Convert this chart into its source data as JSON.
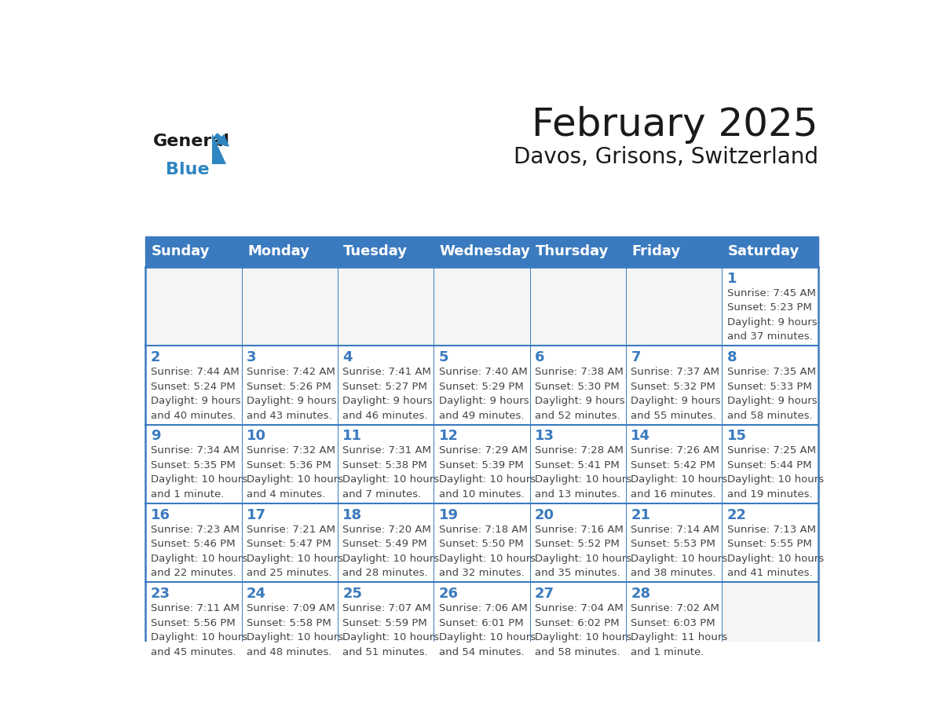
{
  "title": "February 2025",
  "subtitle": "Davos, Grisons, Switzerland",
  "header_color": "#3a7abf",
  "header_text_color": "#ffffff",
  "cell_bg_color": "#ffffff",
  "cell_border_color": "#3a7abf",
  "day_number_color": "#3a7abf",
  "text_color": "#444444",
  "days_of_week": [
    "Sunday",
    "Monday",
    "Tuesday",
    "Wednesday",
    "Thursday",
    "Friday",
    "Saturday"
  ],
  "weeks": [
    [
      {
        "day": null,
        "info": null
      },
      {
        "day": null,
        "info": null
      },
      {
        "day": null,
        "info": null
      },
      {
        "day": null,
        "info": null
      },
      {
        "day": null,
        "info": null
      },
      {
        "day": null,
        "info": null
      },
      {
        "day": 1,
        "info": "Sunrise: 7:45 AM\nSunset: 5:23 PM\nDaylight: 9 hours\nand 37 minutes."
      }
    ],
    [
      {
        "day": 2,
        "info": "Sunrise: 7:44 AM\nSunset: 5:24 PM\nDaylight: 9 hours\nand 40 minutes."
      },
      {
        "day": 3,
        "info": "Sunrise: 7:42 AM\nSunset: 5:26 PM\nDaylight: 9 hours\nand 43 minutes."
      },
      {
        "day": 4,
        "info": "Sunrise: 7:41 AM\nSunset: 5:27 PM\nDaylight: 9 hours\nand 46 minutes."
      },
      {
        "day": 5,
        "info": "Sunrise: 7:40 AM\nSunset: 5:29 PM\nDaylight: 9 hours\nand 49 minutes."
      },
      {
        "day": 6,
        "info": "Sunrise: 7:38 AM\nSunset: 5:30 PM\nDaylight: 9 hours\nand 52 minutes."
      },
      {
        "day": 7,
        "info": "Sunrise: 7:37 AM\nSunset: 5:32 PM\nDaylight: 9 hours\nand 55 minutes."
      },
      {
        "day": 8,
        "info": "Sunrise: 7:35 AM\nSunset: 5:33 PM\nDaylight: 9 hours\nand 58 minutes."
      }
    ],
    [
      {
        "day": 9,
        "info": "Sunrise: 7:34 AM\nSunset: 5:35 PM\nDaylight: 10 hours\nand 1 minute."
      },
      {
        "day": 10,
        "info": "Sunrise: 7:32 AM\nSunset: 5:36 PM\nDaylight: 10 hours\nand 4 minutes."
      },
      {
        "day": 11,
        "info": "Sunrise: 7:31 AM\nSunset: 5:38 PM\nDaylight: 10 hours\nand 7 minutes."
      },
      {
        "day": 12,
        "info": "Sunrise: 7:29 AM\nSunset: 5:39 PM\nDaylight: 10 hours\nand 10 minutes."
      },
      {
        "day": 13,
        "info": "Sunrise: 7:28 AM\nSunset: 5:41 PM\nDaylight: 10 hours\nand 13 minutes."
      },
      {
        "day": 14,
        "info": "Sunrise: 7:26 AM\nSunset: 5:42 PM\nDaylight: 10 hours\nand 16 minutes."
      },
      {
        "day": 15,
        "info": "Sunrise: 7:25 AM\nSunset: 5:44 PM\nDaylight: 10 hours\nand 19 minutes."
      }
    ],
    [
      {
        "day": 16,
        "info": "Sunrise: 7:23 AM\nSunset: 5:46 PM\nDaylight: 10 hours\nand 22 minutes."
      },
      {
        "day": 17,
        "info": "Sunrise: 7:21 AM\nSunset: 5:47 PM\nDaylight: 10 hours\nand 25 minutes."
      },
      {
        "day": 18,
        "info": "Sunrise: 7:20 AM\nSunset: 5:49 PM\nDaylight: 10 hours\nand 28 minutes."
      },
      {
        "day": 19,
        "info": "Sunrise: 7:18 AM\nSunset: 5:50 PM\nDaylight: 10 hours\nand 32 minutes."
      },
      {
        "day": 20,
        "info": "Sunrise: 7:16 AM\nSunset: 5:52 PM\nDaylight: 10 hours\nand 35 minutes."
      },
      {
        "day": 21,
        "info": "Sunrise: 7:14 AM\nSunset: 5:53 PM\nDaylight: 10 hours\nand 38 minutes."
      },
      {
        "day": 22,
        "info": "Sunrise: 7:13 AM\nSunset: 5:55 PM\nDaylight: 10 hours\nand 41 minutes."
      }
    ],
    [
      {
        "day": 23,
        "info": "Sunrise: 7:11 AM\nSunset: 5:56 PM\nDaylight: 10 hours\nand 45 minutes."
      },
      {
        "day": 24,
        "info": "Sunrise: 7:09 AM\nSunset: 5:58 PM\nDaylight: 10 hours\nand 48 minutes."
      },
      {
        "day": 25,
        "info": "Sunrise: 7:07 AM\nSunset: 5:59 PM\nDaylight: 10 hours\nand 51 minutes."
      },
      {
        "day": 26,
        "info": "Sunrise: 7:06 AM\nSunset: 6:01 PM\nDaylight: 10 hours\nand 54 minutes."
      },
      {
        "day": 27,
        "info": "Sunrise: 7:04 AM\nSunset: 6:02 PM\nDaylight: 10 hours\nand 58 minutes."
      },
      {
        "day": 28,
        "info": "Sunrise: 7:02 AM\nSunset: 6:03 PM\nDaylight: 11 hours\nand 1 minute."
      },
      {
        "day": null,
        "info": null
      }
    ]
  ],
  "logo_general_color": "#1a1a1a",
  "logo_blue_color": "#2e86c1",
  "title_fontsize": 36,
  "subtitle_fontsize": 20,
  "header_fontsize": 13,
  "day_number_fontsize": 13,
  "info_fontsize": 9.5
}
